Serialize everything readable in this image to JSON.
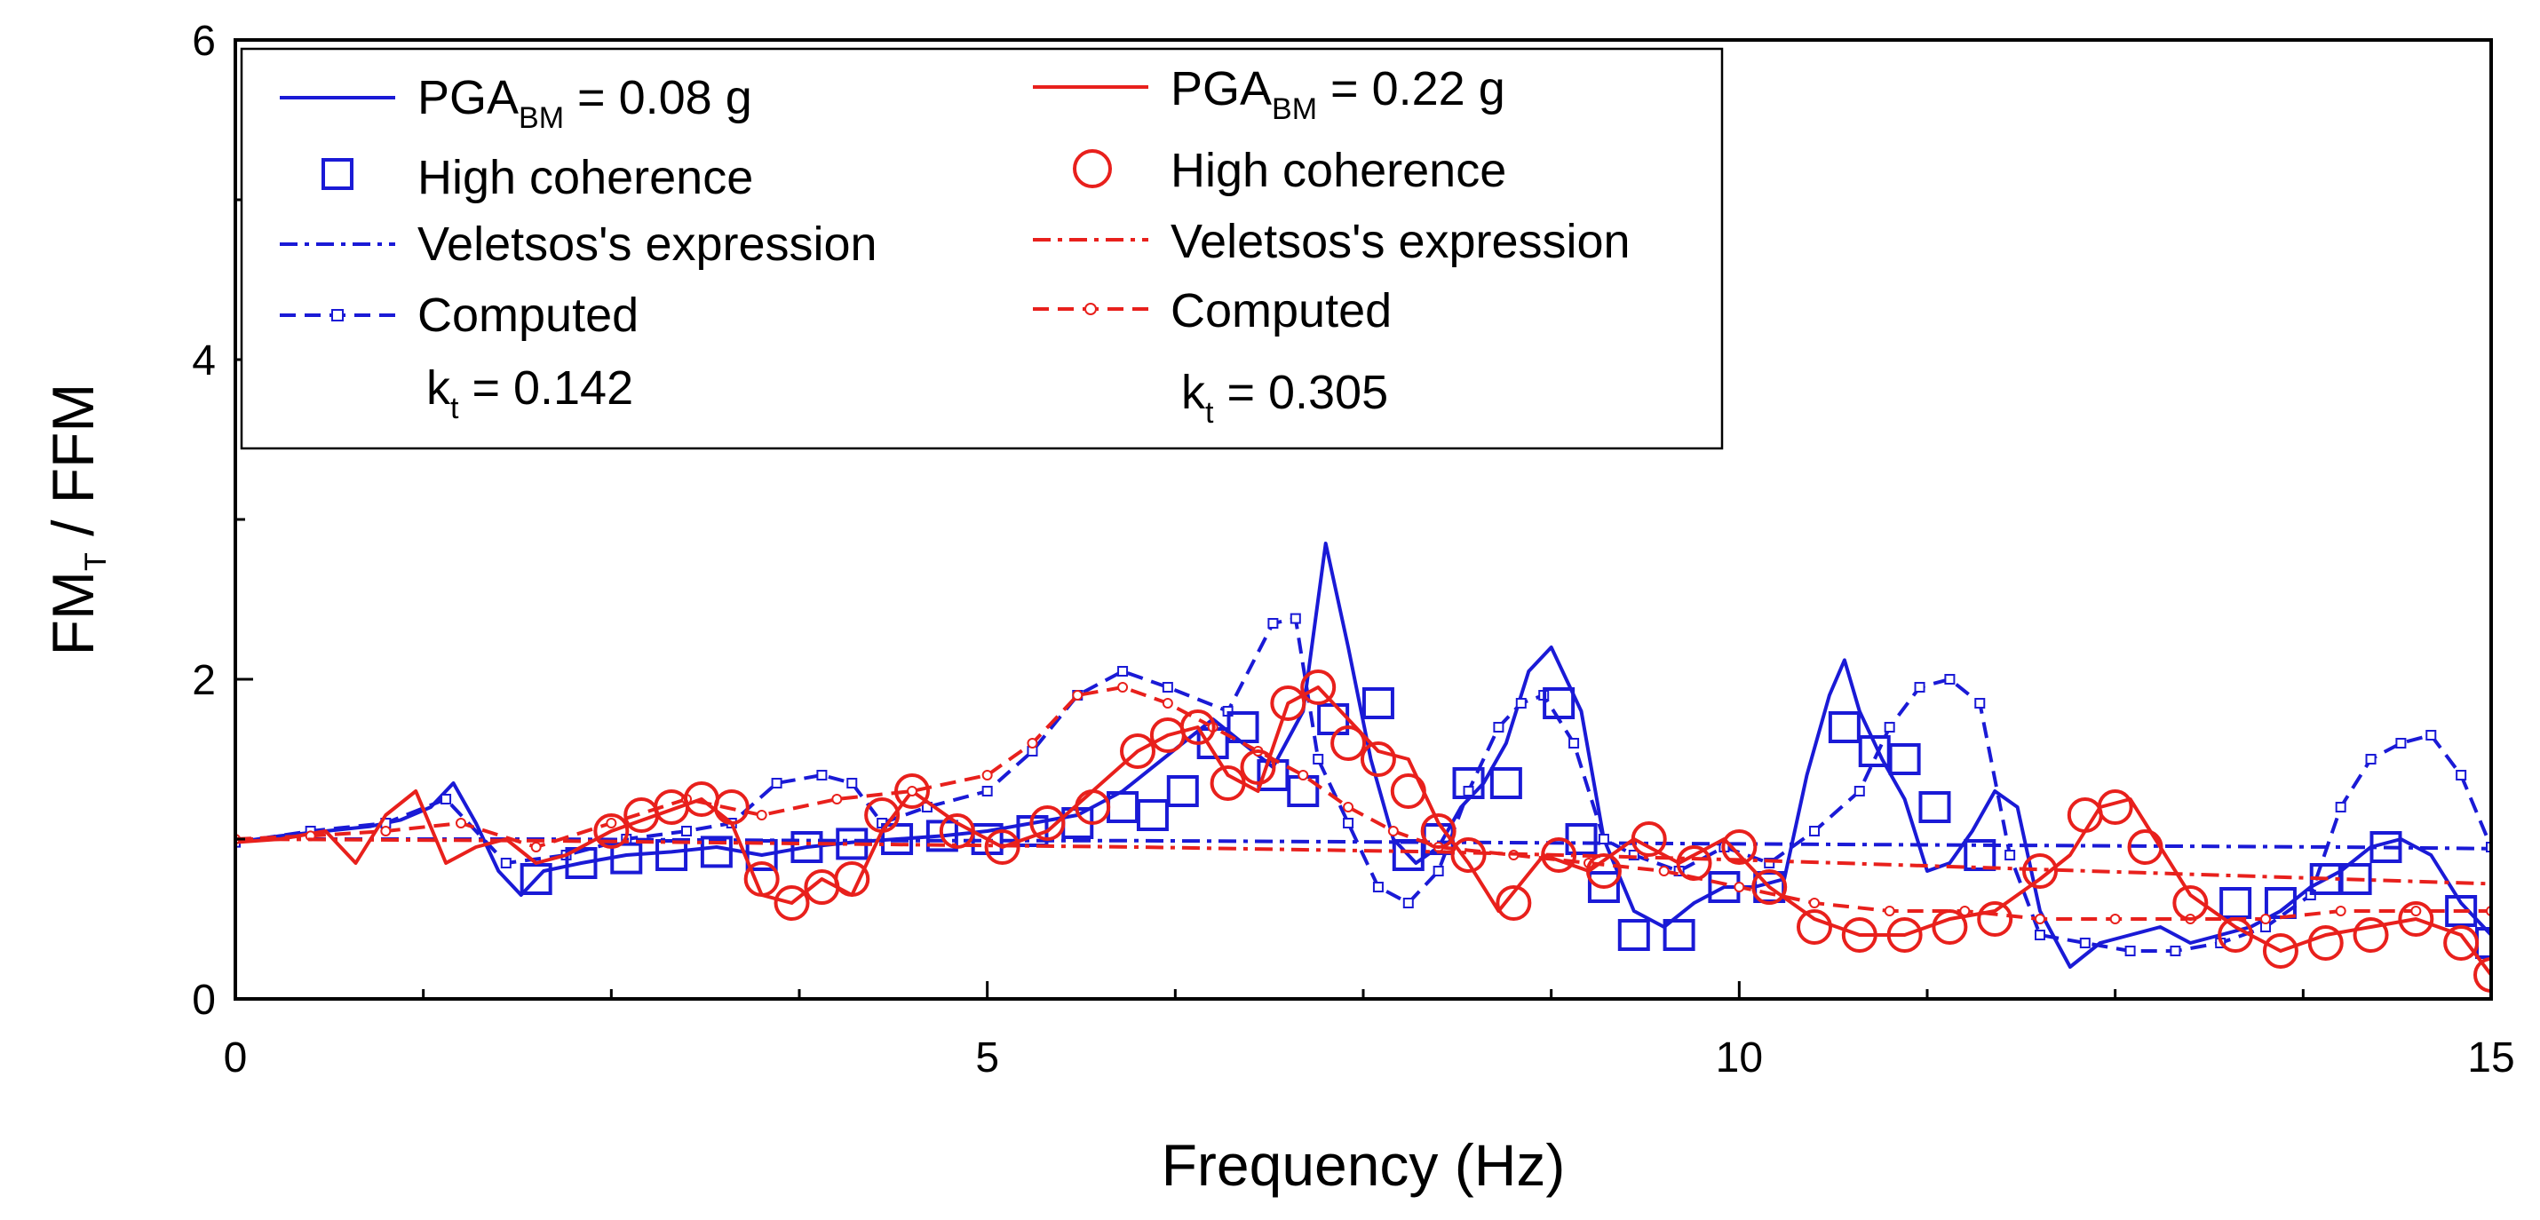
{
  "chart_data": {
    "type": "line",
    "title": "",
    "xlabel": "Frequency (Hz)",
    "ylabel": {
      "main": "FM",
      "sub": "T",
      "rest": " / FFM"
    },
    "xlim": [
      0,
      15
    ],
    "ylim": [
      0,
      6
    ],
    "xticks": [
      0,
      5,
      10,
      15
    ],
    "yticks": [
      0,
      2,
      4,
      6
    ],
    "grid": false,
    "legend_position": "top-left",
    "colors": {
      "blue": "#1a1ad6",
      "red": "#e8201c"
    },
    "legend": {
      "blue_group": {
        "main": {
          "prefix": "PGA",
          "sub": "BM",
          "suffix": " = 0.08 g"
        },
        "high_coherence": "High coherence",
        "veletsos": "Veletsos's expression",
        "computed": "Computed",
        "kt": {
          "prefix": "k",
          "sub": "t",
          "suffix": " = 0.142"
        }
      },
      "red_group": {
        "main": {
          "prefix": "PGA",
          "sub": "BM",
          "suffix": " = 0.22 g"
        },
        "high_coherence": "High coherence",
        "veletsos": "Veletsos's expression",
        "computed": "Computed",
        "kt": {
          "prefix": "k",
          "sub": "t",
          "suffix": " = 0.305"
        }
      }
    },
    "series": [
      {
        "name": "PGA_BM = 0.08 g measured",
        "color": "blue",
        "style": "solid",
        "x": [
          0,
          0.3,
          0.6,
          0.9,
          1.1,
          1.3,
          1.45,
          1.6,
          1.75,
          1.9,
          2.05,
          2.3,
          2.6,
          2.9,
          3.2,
          3.5,
          3.8,
          4.1,
          4.4,
          4.7,
          5.0,
          5.3,
          5.6,
          5.9,
          6.1,
          6.3,
          6.5,
          6.7,
          6.9,
          7.1,
          7.25,
          7.4,
          7.55,
          7.7,
          7.85,
          8.0,
          8.15,
          8.3,
          8.45,
          8.6,
          8.75,
          8.85,
          8.95,
          9.1,
          9.3,
          9.5,
          9.7,
          9.9,
          10.1,
          10.3,
          10.45,
          10.6,
          10.7,
          10.8,
          10.95,
          11.1,
          11.25,
          11.4,
          11.55,
          11.7,
          11.85,
          12.0,
          12.2,
          12.4,
          12.6,
          12.8,
          13.0,
          13.2,
          13.4,
          13.6,
          13.8,
          14.0,
          14.2,
          14.4,
          14.6,
          14.8,
          15.0
        ],
        "y": [
          0.98,
          1.02,
          1.05,
          1.08,
          1.12,
          1.2,
          1.35,
          1.1,
          0.8,
          0.65,
          0.8,
          0.85,
          0.9,
          0.92,
          0.95,
          0.9,
          0.95,
          0.98,
          1.0,
          1.02,
          1.05,
          1.1,
          1.15,
          1.3,
          1.45,
          1.6,
          1.75,
          1.6,
          1.45,
          1.8,
          2.85,
          2.2,
          1.5,
          1.0,
          0.85,
          0.95,
          1.2,
          1.35,
          1.6,
          2.05,
          2.2,
          2.0,
          1.8,
          1.0,
          0.55,
          0.45,
          0.6,
          0.7,
          0.7,
          0.75,
          1.4,
          1.9,
          2.12,
          1.8,
          1.5,
          1.25,
          0.8,
          0.85,
          1.05,
          1.3,
          1.2,
          0.55,
          0.2,
          0.35,
          0.4,
          0.45,
          0.35,
          0.4,
          0.45,
          0.55,
          0.7,
          0.8,
          0.95,
          1.0,
          0.9,
          0.6,
          0.4
        ]
      },
      {
        "name": "PGA_BM = 0.08 g computed",
        "color": "blue",
        "style": "dashed-small-square",
        "x": [
          0,
          0.5,
          1.0,
          1.4,
          1.8,
          2.2,
          2.6,
          3.0,
          3.3,
          3.6,
          3.9,
          4.1,
          4.3,
          4.6,
          5.0,
          5.3,
          5.6,
          5.9,
          6.2,
          6.6,
          6.9,
          7.05,
          7.2,
          7.4,
          7.6,
          7.8,
          8.0,
          8.2,
          8.4,
          8.55,
          8.7,
          8.9,
          9.1,
          9.3,
          9.6,
          9.9,
          10.2,
          10.5,
          10.8,
          11.0,
          11.2,
          11.4,
          11.6,
          11.8,
          12.0,
          12.3,
          12.6,
          12.9,
          13.2,
          13.5,
          13.8,
          14.0,
          14.2,
          14.4,
          14.6,
          14.8,
          15.0
        ],
        "y": [
          0.98,
          1.05,
          1.1,
          1.25,
          0.85,
          0.9,
          1.0,
          1.05,
          1.1,
          1.35,
          1.4,
          1.35,
          1.1,
          1.2,
          1.3,
          1.55,
          1.9,
          2.05,
          1.95,
          1.8,
          2.35,
          2.38,
          1.5,
          1.1,
          0.7,
          0.6,
          0.8,
          1.3,
          1.7,
          1.85,
          1.9,
          1.6,
          1.0,
          0.9,
          0.8,
          0.95,
          0.85,
          1.05,
          1.3,
          1.7,
          1.95,
          2.0,
          1.85,
          0.9,
          0.4,
          0.35,
          0.3,
          0.3,
          0.35,
          0.45,
          0.65,
          1.2,
          1.5,
          1.6,
          1.65,
          1.4,
          0.95
        ]
      },
      {
        "name": "PGA_BM = 0.08 g Veletsos",
        "color": "blue",
        "style": "dash-dot",
        "x": [
          0,
          2,
          4,
          6,
          8,
          10,
          12,
          14,
          15
        ],
        "y": [
          1.0,
          1.0,
          0.99,
          0.99,
          0.98,
          0.97,
          0.96,
          0.95,
          0.94
        ]
      },
      {
        "name": "PGA_BM = 0.08 g high coherence",
        "color": "blue",
        "style": "open-square",
        "x": [
          2.0,
          2.3,
          2.6,
          2.9,
          3.2,
          3.5,
          3.8,
          4.1,
          4.4,
          4.7,
          5.0,
          5.3,
          5.6,
          5.9,
          6.1,
          6.3,
          6.5,
          6.7,
          6.9,
          7.1,
          7.3,
          7.6,
          7.8,
          8.0,
          8.2,
          8.45,
          8.8,
          8.95,
          9.1,
          9.3,
          9.6,
          9.9,
          10.2,
          10.7,
          10.9,
          11.1,
          11.3,
          11.6,
          13.3,
          13.6,
          13.9,
          14.1,
          14.3,
          14.8,
          15.0
        ],
        "y": [
          0.75,
          0.85,
          0.88,
          0.9,
          0.92,
          0.9,
          0.95,
          0.97,
          1.0,
          1.02,
          1.0,
          1.05,
          1.1,
          1.2,
          1.15,
          1.3,
          1.6,
          1.7,
          1.4,
          1.3,
          1.75,
          1.85,
          0.9,
          1.0,
          1.35,
          1.35,
          1.85,
          1.0,
          0.7,
          0.4,
          0.4,
          0.7,
          0.7,
          1.7,
          1.55,
          1.5,
          1.2,
          0.9,
          0.6,
          0.6,
          0.75,
          0.75,
          0.95,
          0.55,
          0.35
        ]
      },
      {
        "name": "PGA_BM = 0.22 g measured",
        "color": "red",
        "style": "solid",
        "x": [
          0,
          0.3,
          0.6,
          0.8,
          1.0,
          1.2,
          1.4,
          1.6,
          1.8,
          2.0,
          2.2,
          2.5,
          2.8,
          3.1,
          3.3,
          3.5,
          3.7,
          3.9,
          4.1,
          4.3,
          4.5,
          4.8,
          5.1,
          5.4,
          5.7,
          6.0,
          6.2,
          6.4,
          6.6,
          6.8,
          7.0,
          7.2,
          7.4,
          7.6,
          7.8,
          8.0,
          8.2,
          8.4,
          8.7,
          9.0,
          9.3,
          9.6,
          9.9,
          10.2,
          10.5,
          10.8,
          11.1,
          11.4,
          11.7,
          12.0,
          12.2,
          12.4,
          12.6,
          12.8,
          13.0,
          13.3,
          13.6,
          13.9,
          14.2,
          14.5,
          14.8,
          15.0
        ],
        "y": [
          0.98,
          1.0,
          1.05,
          0.85,
          1.15,
          1.3,
          0.85,
          0.95,
          1.0,
          0.85,
          0.9,
          1.05,
          1.15,
          1.25,
          1.1,
          0.65,
          0.6,
          0.75,
          0.65,
          1.05,
          1.3,
          1.1,
          0.95,
          1.05,
          1.3,
          1.55,
          1.65,
          1.7,
          1.4,
          1.3,
          1.85,
          1.95,
          1.75,
          1.55,
          1.5,
          1.1,
          0.85,
          0.55,
          0.9,
          0.8,
          1.0,
          0.85,
          1.0,
          0.7,
          0.5,
          0.4,
          0.4,
          0.5,
          0.55,
          0.75,
          0.9,
          1.2,
          1.25,
          0.95,
          0.65,
          0.45,
          0.3,
          0.4,
          0.45,
          0.5,
          0.4,
          0.15
        ]
      },
      {
        "name": "PGA_BM = 0.22 g computed",
        "color": "red",
        "style": "dashed-small-circle",
        "x": [
          0,
          0.5,
          1.0,
          1.5,
          2.0,
          2.5,
          3.0,
          3.5,
          4.0,
          4.5,
          5.0,
          5.3,
          5.6,
          5.9,
          6.2,
          6.5,
          6.8,
          7.1,
          7.4,
          7.7,
          8.0,
          8.5,
          9.0,
          9.5,
          10.0,
          10.5,
          11.0,
          11.5,
          12.0,
          12.5,
          13.0,
          13.5,
          14.0,
          14.5,
          15.0
        ],
        "y": [
          1.0,
          1.02,
          1.05,
          1.1,
          0.95,
          1.1,
          1.25,
          1.15,
          1.25,
          1.3,
          1.4,
          1.6,
          1.9,
          1.95,
          1.85,
          1.7,
          1.55,
          1.4,
          1.2,
          1.05,
          0.95,
          0.9,
          0.85,
          0.8,
          0.7,
          0.6,
          0.55,
          0.55,
          0.5,
          0.5,
          0.5,
          0.5,
          0.55,
          0.55,
          0.55
        ]
      },
      {
        "name": "PGA_BM = 0.22 g Veletsos",
        "color": "red",
        "style": "dash-dot",
        "x": [
          0,
          2,
          4,
          6,
          8,
          10,
          12,
          14,
          15
        ],
        "y": [
          1.0,
          0.99,
          0.97,
          0.95,
          0.92,
          0.87,
          0.81,
          0.75,
          0.72
        ]
      },
      {
        "name": "PGA_BM = 0.22 g high coherence",
        "color": "red",
        "style": "open-circle",
        "x": [
          2.5,
          2.7,
          2.9,
          3.1,
          3.3,
          3.5,
          3.7,
          3.9,
          4.1,
          4.3,
          4.5,
          4.8,
          5.1,
          5.4,
          5.7,
          6.0,
          6.2,
          6.4,
          6.6,
          6.8,
          7.0,
          7.2,
          7.4,
          7.6,
          7.8,
          8.0,
          8.2,
          8.5,
          8.8,
          9.1,
          9.4,
          9.7,
          10.0,
          10.2,
          10.5,
          10.8,
          11.1,
          11.4,
          11.7,
          12.0,
          12.3,
          12.5,
          12.7,
          13.0,
          13.3,
          13.6,
          13.9,
          14.2,
          14.5,
          14.8,
          15.0
        ],
        "y": [
          1.05,
          1.15,
          1.2,
          1.25,
          1.2,
          0.75,
          0.6,
          0.7,
          0.75,
          1.15,
          1.3,
          1.05,
          0.95,
          1.1,
          1.2,
          1.55,
          1.65,
          1.7,
          1.35,
          1.45,
          1.85,
          1.95,
          1.6,
          1.5,
          1.3,
          1.05,
          0.9,
          0.6,
          0.9,
          0.8,
          1.0,
          0.85,
          0.95,
          0.7,
          0.45,
          0.4,
          0.4,
          0.45,
          0.5,
          0.8,
          1.15,
          1.2,
          0.95,
          0.6,
          0.4,
          0.3,
          0.35,
          0.4,
          0.5,
          0.35,
          0.15
        ]
      }
    ]
  }
}
